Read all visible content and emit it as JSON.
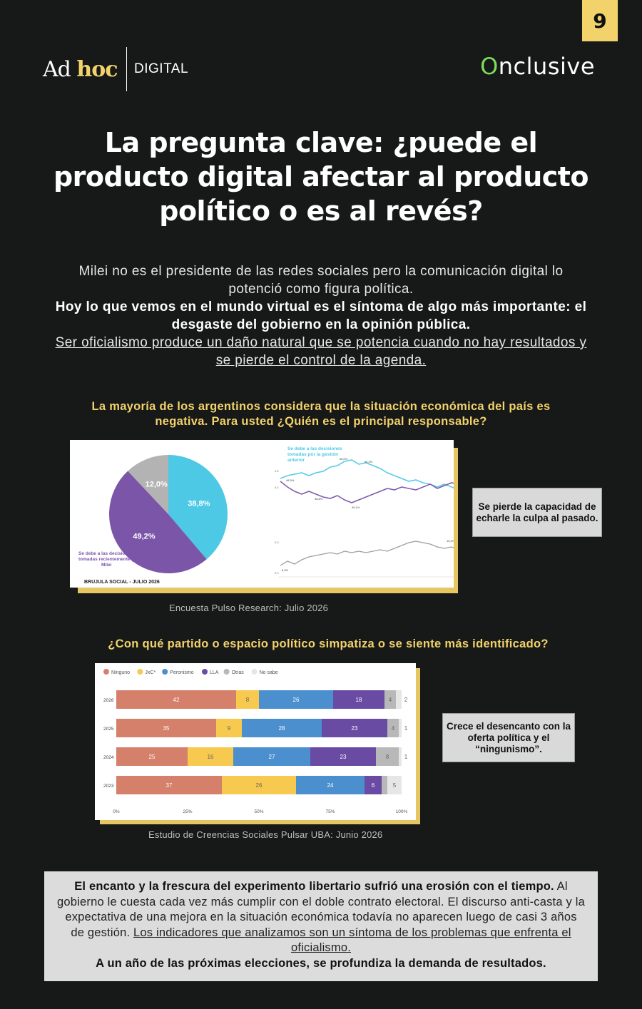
{
  "page": {
    "number": "9"
  },
  "header": {
    "logo_left_ad": "Ad",
    "logo_left_hoc": "hoc",
    "logo_left_digital": "DIGITAL",
    "logo_right": "nclusive",
    "logo_right_o": "O"
  },
  "title": "La pregunta clave: ¿puede el producto digital afectar al producto político o es al revés?",
  "intro": {
    "line1": "Milei no es el presidente de las redes sociales pero la comunicación digital lo potenció como figura política.",
    "bold": "Hoy lo que vemos en el mundo virtual es el síntoma de algo más importante: el desgaste del gobierno en la opinión pública.",
    "underlined": "Ser oficialismo produce un daño natural que se potencia cuando no hay resultados y se pierde el control de la agenda."
  },
  "section1": {
    "question": "La mayoría de los argentinos considera que la situación económica del país es negativa. Para usted ¿Quién es el principal responsable?",
    "callout": "Se pierde la capacidad de echarle la culpa al pasado.",
    "source": "Encuesta Pulso Research: Julio 2026",
    "pie_footer": "BRUJULA SOCIAL - JULIO 2026"
  },
  "section2": {
    "question": "¿Con qué partido o espacio político simpatiza o se siente más identificado?",
    "callout": "Crece el desencanto con la oferta política y el “ningunismo”.",
    "source": "Estudio de Creencias Sociales Pulsar UBA: Junio 2026"
  },
  "conclusion": {
    "bold1": "El encanto y la frescura del experimento libertario sufrió una erosión con el tiempo.",
    "text": " Al gobierno le cuesta cada vez más cumplir con el doble contrato electoral. El discurso anti-casta y la expectativa de una mejora en la situación económica todavía no aparecen luego de casi 3 años de gestión. ",
    "underlined": "Los indicadores que analizamos son un síntoma de los problemas que enfrenta el oficialismo.",
    "bold2": "A un año de las próximas elecciones, se profundiza la demanda de resultados."
  },
  "colors": {
    "accent": "#f2d36b",
    "background": "#171818",
    "pie_cyan": "#4dc9e6",
    "pie_purple": "#7b55a8",
    "pie_gray": "#b3b3b3"
  },
  "chart_data": [
    {
      "type": "pie",
      "title": "",
      "slices": [
        {
          "label": "Se debe a las decisiones tomadas por la gestión anterior",
          "value": 38.8,
          "text": "38,8%",
          "color": "#4dc9e6"
        },
        {
          "label": "Se debe a las decisiones tomadas recientemente por Milei",
          "value": 49.2,
          "text": "49,2%",
          "color": "#7b55a8"
        },
        {
          "label": "",
          "value": 12.0,
          "text": "12,0%",
          "color": "#b3b3b3"
        }
      ]
    },
    {
      "type": "bar",
      "stacked": true,
      "orientation": "horizontal",
      "categories": [
        "2026",
        "2025",
        "2024",
        "2023"
      ],
      "x_ticks": [
        "0%",
        "25%",
        "50%",
        "75%",
        "100%"
      ],
      "xlim": [
        0,
        100
      ],
      "legend_position": "top-left",
      "series": [
        {
          "name": "Ninguno",
          "color": "#d4806b",
          "values": [
            42,
            35,
            25,
            37
          ]
        },
        {
          "name": "JxC*",
          "color": "#f7c94e",
          "values": [
            8,
            9,
            16,
            26
          ]
        },
        {
          "name": "Peronismo",
          "color": "#4b8fcf",
          "values": [
            26,
            28,
            27,
            24
          ]
        },
        {
          "name": "LLA",
          "color": "#6a4ba3",
          "values": [
            18,
            23,
            23,
            6
          ]
        },
        {
          "name": "Otras",
          "color": "#b8b8b8",
          "values": [
            4,
            4,
            8,
            2
          ]
        },
        {
          "name": "No sabe",
          "color": "#e6e6e6",
          "values": [
            2,
            1,
            1,
            5
          ]
        }
      ]
    }
  ]
}
